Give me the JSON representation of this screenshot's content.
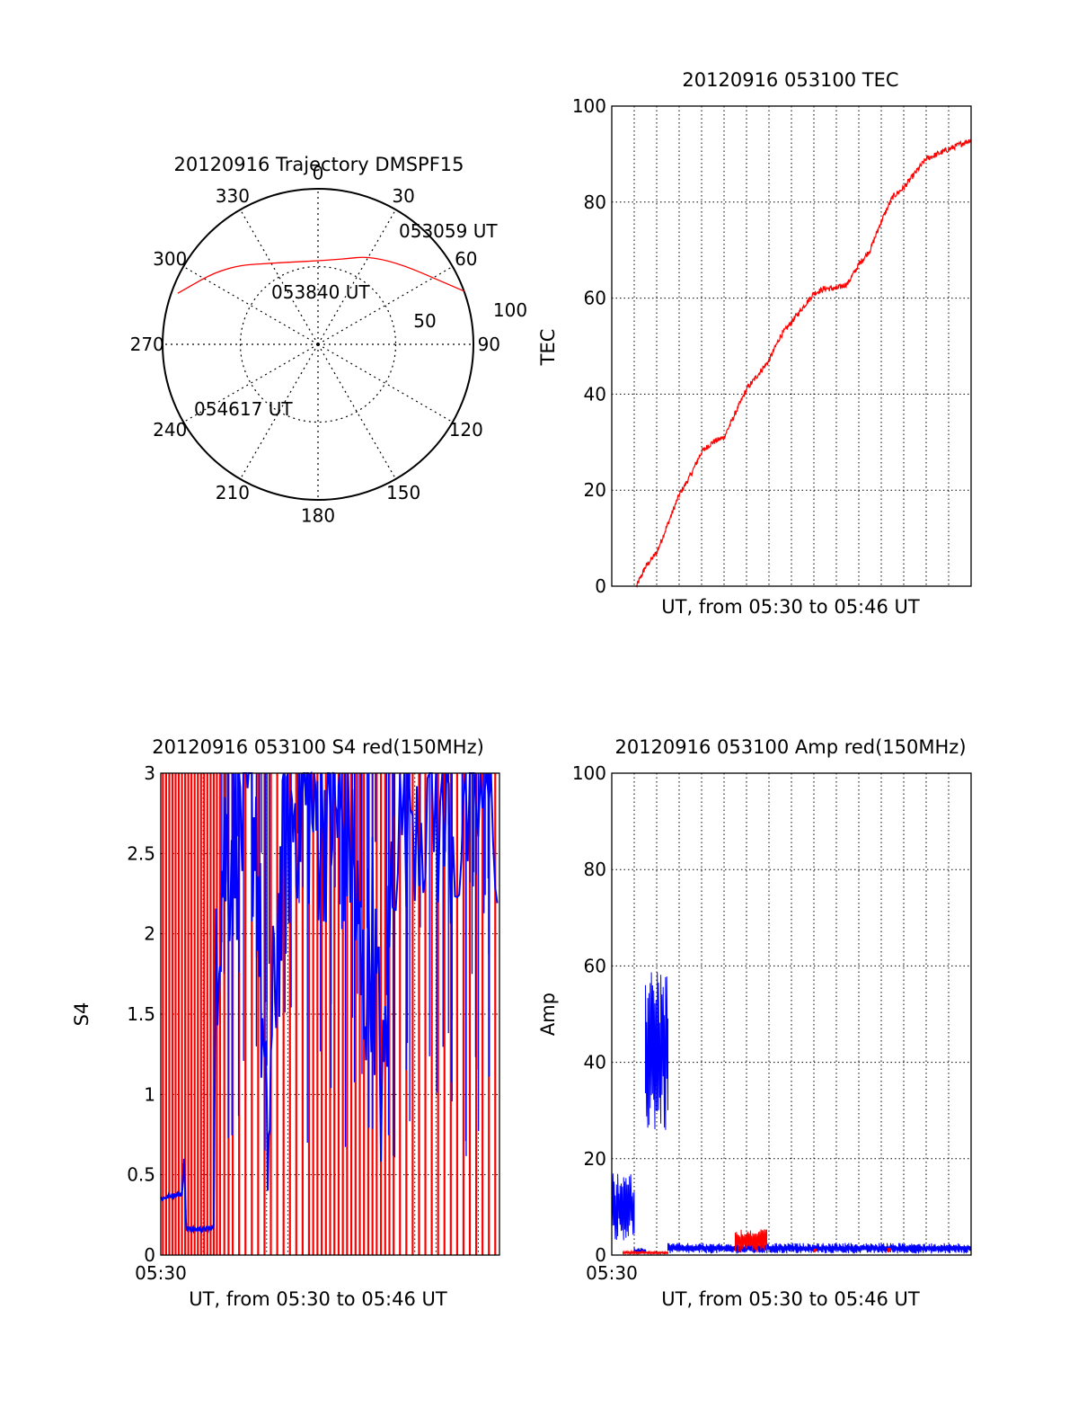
{
  "colors": {
    "red": "#ff0000",
    "blue": "#0000ff",
    "axis": "#000000",
    "grid": "#000000"
  },
  "chart_data": [
    {
      "type": "polar",
      "title": "20120916 Trajectory DMSPF15",
      "azimuth_ticks": [
        "0",
        "30",
        "60",
        "90",
        "120",
        "150",
        "180",
        "210",
        "240",
        "270",
        "300",
        "330"
      ],
      "radial_ring_labels": [
        "50",
        "100"
      ],
      "grid": true,
      "series": [
        {
          "color": "red",
          "points": [
            {
              "az": 70,
              "r": 100
            },
            {
              "az": 35,
              "r": 70
            },
            {
              "az": 10,
              "r": 55
            },
            {
              "az": -25,
              "r": 58
            },
            {
              "az": -50,
              "r": 78
            },
            {
              "az": -70,
              "r": 96
            }
          ]
        }
      ],
      "annotations": [
        {
          "text": "053059 UT",
          "az": 63,
          "r": 100
        },
        {
          "text": "053840 UT",
          "az": 0,
          "r": 58
        },
        {
          "text": "054617 UT",
          "az": -88,
          "r": 88
        }
      ]
    },
    {
      "type": "line",
      "title": "20120916 053100 TEC",
      "xlabel": "UT, from 05:30 to 05:46 UT",
      "ylabel": "TEC",
      "ylim": [
        0,
        100
      ],
      "yticks": [
        "0",
        "20",
        "40",
        "60",
        "80",
        "100"
      ],
      "xlim_minutes": [
        0,
        16
      ],
      "x_tick_labels": [],
      "grid": true,
      "series": [
        {
          "color": "red",
          "x": [
            1.1,
            1.5,
            2.0,
            2.5,
            3.0,
            3.5,
            4.0,
            4.5,
            5.0,
            5.5,
            6.0,
            6.5,
            7.0,
            7.5,
            8.0,
            8.5,
            9.0,
            9.5,
            10.0,
            10.5,
            11.0,
            11.5,
            12.0,
            12.5,
            13.0,
            13.5,
            14.0,
            14.5,
            15.0,
            15.5,
            16.0
          ],
          "y": [
            0,
            4,
            7,
            13,
            19,
            23,
            28,
            30,
            31,
            36,
            41,
            44,
            47,
            52,
            55,
            58,
            61,
            62,
            62,
            63,
            67,
            70,
            76,
            81,
            83,
            86,
            89,
            90,
            91,
            92,
            93
          ]
        }
      ]
    },
    {
      "type": "line",
      "title": "20120916 053100 S4 red(150MHz)",
      "xlabel": "UT, from 05:30 to 05:46 UT",
      "ylabel": "S4",
      "ylim": [
        0,
        3
      ],
      "yticks": [
        "0",
        "0.5",
        "1",
        "1.5",
        "2",
        "2.5",
        "3"
      ],
      "xlim_minutes": [
        0,
        16
      ],
      "x_tick_labels": [
        "05:30"
      ],
      "grid": true,
      "series": [
        {
          "color": "red",
          "style": "dense spikes 0 to 3 across the interval",
          "spike_x": [
            0.1,
            0.25,
            0.4,
            0.55,
            0.7,
            0.85,
            1.0,
            1.15,
            1.3,
            1.45,
            1.6,
            1.75,
            1.9,
            2.05,
            2.2,
            2.35,
            2.5,
            2.65,
            2.8,
            3.0,
            3.2,
            3.4,
            3.7,
            4.0,
            4.3,
            4.6,
            4.9,
            5.2,
            5.5,
            5.8,
            6.1,
            6.4,
            6.7,
            7.0,
            7.2,
            7.4,
            7.6,
            7.8,
            8.0,
            8.2,
            8.4,
            8.6,
            8.8,
            9.0,
            9.2,
            9.4,
            9.6,
            9.8,
            10.0,
            10.2,
            10.4,
            10.6,
            10.8,
            11.0,
            11.3,
            11.6,
            11.9,
            12.2,
            12.5,
            12.8,
            13.1,
            13.4,
            13.7,
            14.0,
            14.3,
            14.6,
            14.9,
            15.2,
            15.5,
            15.8
          ]
        },
        {
          "color": "blue",
          "style": "low segments then dense band near top",
          "x": [
            0.0,
            0.5,
            1.0,
            1.1,
            1.2,
            1.5,
            2.0,
            2.5,
            2.6,
            3.0,
            3.5,
            4.0,
            4.5,
            5.0,
            5.5,
            6.0,
            6.5,
            7.0,
            7.5,
            8.0,
            8.5,
            9.0,
            9.5,
            10.0,
            10.5,
            11.0,
            12.0,
            13.0,
            14.0,
            15.0,
            16.0
          ],
          "y": [
            0.35,
            0.37,
            0.38,
            0.6,
            0.17,
            0.16,
            0.16,
            0.17,
            2.0,
            2.5,
            2.6,
            2.8,
            2.7,
            0.5,
            2.0,
            2.6,
            2.9,
            2.8,
            2.7,
            2.8,
            2.7,
            2.6,
            1.6,
            2.0,
            0.9,
            2.7,
            2.9,
            2.8,
            2.6,
            2.9,
            2.7
          ]
        }
      ]
    },
    {
      "type": "line",
      "title": "20120916 053100 Amp red(150MHz)",
      "xlabel": "UT, from 05:30 to 05:46 UT",
      "ylabel": "Amp",
      "ylim": [
        0,
        100
      ],
      "yticks": [
        "0",
        "20",
        "40",
        "60",
        "80",
        "100"
      ],
      "xlim_minutes": [
        0,
        16
      ],
      "x_tick_labels": [
        "05:30"
      ],
      "grid": true,
      "series": [
        {
          "color": "blue",
          "name": "",
          "segments": [
            {
              "x_from": 0.0,
              "x_to": 1.0,
              "y_low": 3,
              "y_high": 17
            },
            {
              "x_from": 1.0,
              "x_to": 1.5,
              "y_low": 0.3,
              "y_high": 1.5
            },
            {
              "x_from": 1.5,
              "x_to": 2.5,
              "y_low": 25,
              "y_high": 60
            },
            {
              "x_from": 2.5,
              "x_to": 16.0,
              "y_low": 0.3,
              "y_high": 2.5
            }
          ]
        },
        {
          "color": "red",
          "name": "",
          "segments": [
            {
              "x_from": 0.5,
              "x_to": 2.5,
              "y_low": 0.2,
              "y_high": 0.8
            },
            {
              "x_from": 5.5,
              "x_to": 6.9,
              "y_low": 0.5,
              "y_high": 5.5
            },
            {
              "x_from": 9.0,
              "x_to": 9.1,
              "y_low": 0.5,
              "y_high": 1.5
            },
            {
              "x_from": 12.3,
              "x_to": 12.4,
              "y_low": 0.5,
              "y_high": 1.5
            }
          ]
        }
      ]
    }
  ]
}
